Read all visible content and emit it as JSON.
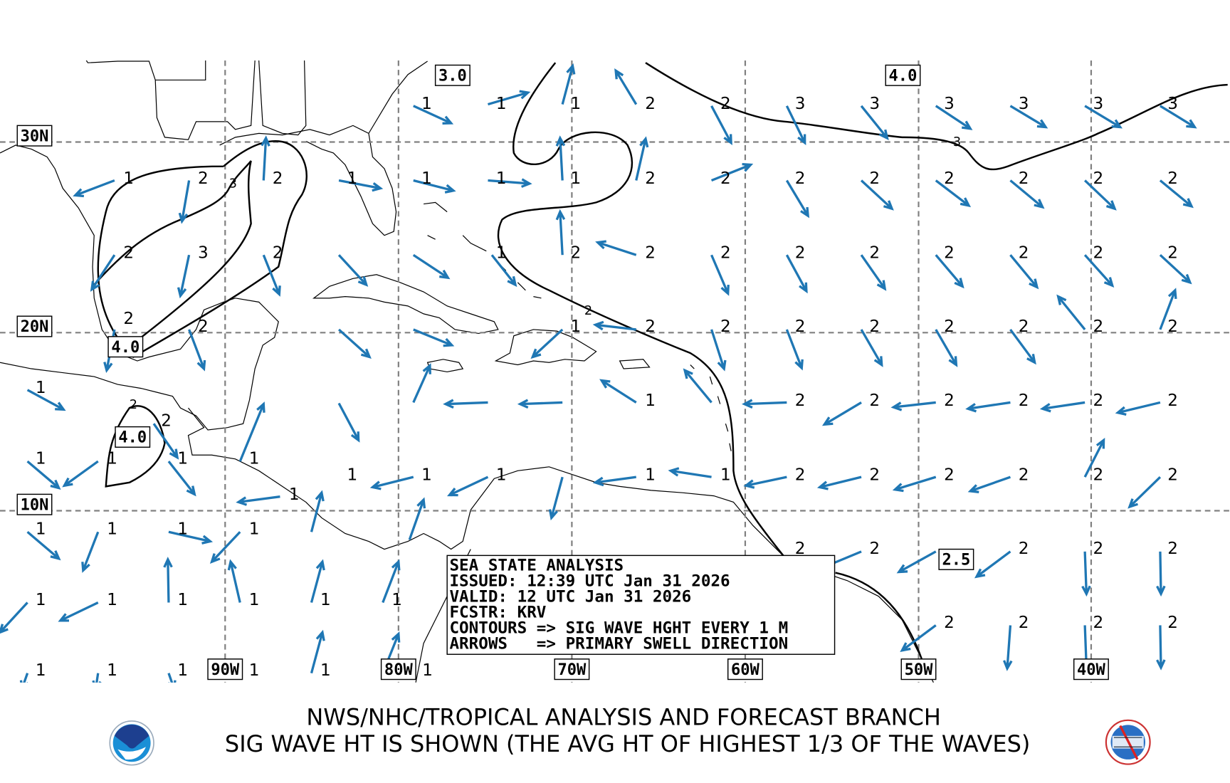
{
  "info_box": {
    "line1": "SEA STATE ANALYSIS",
    "line2": "ISSUED: 12:39 UTC Jan 31 2026",
    "line3": "VALID: 12 UTC Jan 31 2026",
    "line4": "FCSTR: KRV",
    "line5": "CONTOURS => SIG WAVE HGHT EVERY 1 M",
    "line6": "ARROWS   => PRIMARY SWELL DIRECTION"
  },
  "footer": {
    "line1": "NWS/NHC/TROPICAL ANALYSIS AND FORECAST BRANCH",
    "line2": "SIG WAVE HT IS SHOWN (THE AVG HT OF HIGHEST 1/3 OF THE WAVES)",
    "left_logo": "NOAA",
    "right_logo": "TAFB"
  },
  "lat_labels": [
    "30N",
    "20N",
    "10N"
  ],
  "lon_labels": [
    "90W",
    "80W",
    "70W",
    "60W",
    "50W",
    "40W"
  ],
  "contour_boxes": [
    "3.0",
    "4.0",
    "4.0",
    "4.0",
    "2.5"
  ],
  "contour_inline_labels": [
    "3",
    "2",
    "3",
    "2"
  ],
  "wave_heights": [
    "1",
    "1",
    "1",
    "2",
    "2",
    "3",
    "3",
    "3",
    "3",
    "3",
    "3",
    "1",
    "2",
    "2",
    "1",
    "1",
    "1",
    "1",
    "2",
    "2",
    "2",
    "2",
    "2",
    "2",
    "2",
    "2",
    "2",
    "3",
    "2",
    "1",
    "2",
    "2",
    "2",
    "2",
    "2",
    "2",
    "2",
    "2",
    "2",
    "2",
    "2",
    "1",
    "2",
    "2",
    "2",
    "2",
    "2",
    "2",
    "2",
    "2",
    "1",
    "2",
    "1",
    "2",
    "2",
    "2",
    "2",
    "2",
    "2",
    "1",
    "1",
    "1",
    "1",
    "1",
    "1",
    "1",
    "1",
    "1",
    "2",
    "2",
    "2",
    "2",
    "2",
    "2",
    "1",
    "1",
    "1",
    "1",
    "1",
    "2",
    "2",
    "2",
    "2",
    "2",
    "1",
    "1",
    "1",
    "1",
    "1",
    "1",
    "2",
    "2",
    "2",
    "2",
    "1",
    "1",
    "1",
    "1",
    "1",
    "1"
  ],
  "colors": {
    "arrow": "#1f77b4",
    "grid": "#808080",
    "contour": "#000000"
  }
}
